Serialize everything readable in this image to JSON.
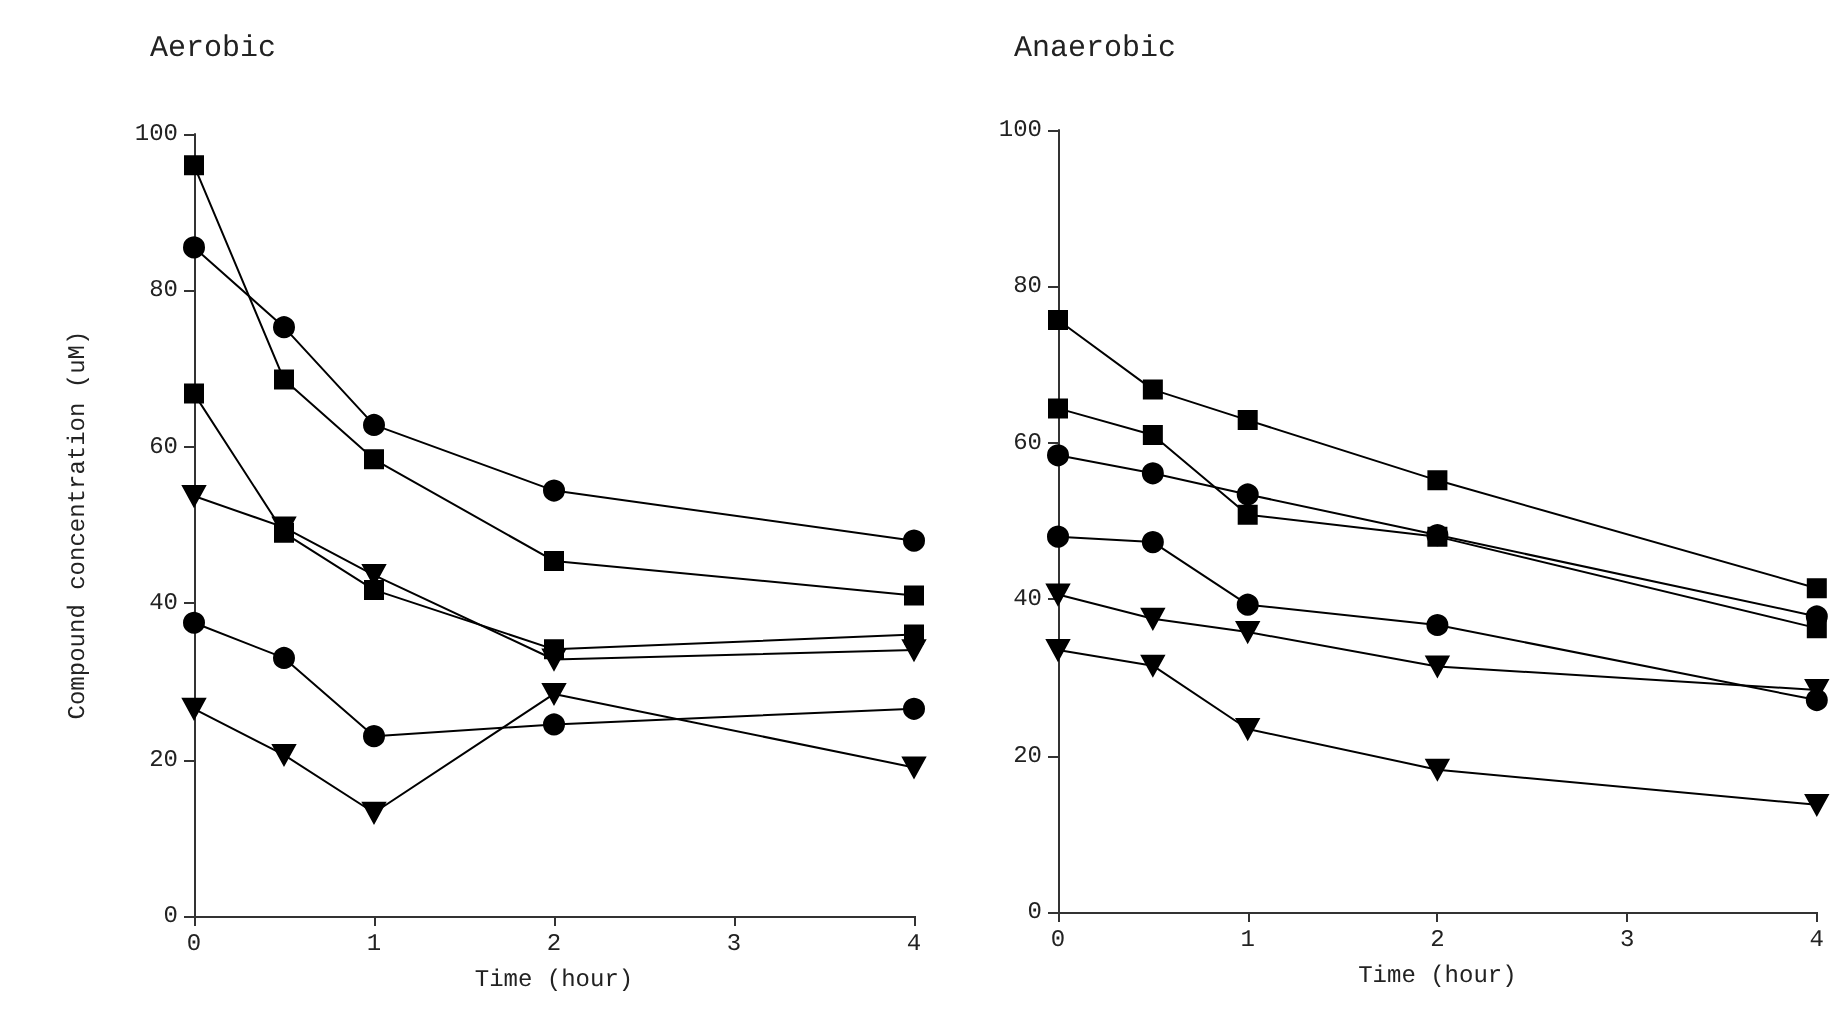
{
  "chart_data": [
    {
      "type": "line",
      "title": "Aerobic",
      "xlabel": "Time (hour)",
      "ylabel": "Compound concentration (uM)",
      "x": [
        0,
        0.5,
        1,
        2,
        4
      ],
      "xlim": [
        0,
        4
      ],
      "xticks": [
        0,
        1,
        2,
        3,
        4
      ],
      "ylim": [
        0,
        100
      ],
      "yticks": [
        0,
        20,
        40,
        60,
        80,
        100
      ],
      "line_style": "solid",
      "series": [
        {
          "color": "#000000",
          "marker": "square",
          "values": [
            96,
            68.6,
            58.4,
            45.4,
            41
          ]
        },
        {
          "color": "#000000",
          "marker": "circle",
          "values": [
            85.5,
            75.3,
            62.8,
            54.4,
            48
          ]
        },
        {
          "color": "#000000",
          "marker": "square",
          "values": [
            66.8,
            49,
            41.7,
            34.1,
            36
          ]
        },
        {
          "color": "#000000",
          "marker": "triangle",
          "values": [
            53.7,
            49.7,
            43.6,
            32.8,
            34
          ]
        },
        {
          "color": "#000000",
          "marker": "circle",
          "values": [
            37.5,
            33,
            23,
            24.5,
            26.5
          ]
        },
        {
          "color": "#000000",
          "marker": "triangle",
          "values": [
            26.5,
            20.6,
            13.2,
            28.4,
            19
          ]
        }
      ]
    },
    {
      "type": "line",
      "title": "Anaerobic",
      "xlabel": "Time (hour)",
      "x": [
        0,
        0.5,
        1,
        2,
        4
      ],
      "xlim": [
        0,
        4
      ],
      "xticks": [
        0,
        1,
        2,
        3,
        4
      ],
      "ylim": [
        0,
        100
      ],
      "yticks": [
        0,
        20,
        40,
        60,
        80,
        100
      ],
      "line_style": "solid",
      "series": [
        {
          "color": "#000000",
          "marker": "square",
          "values": [
            75.7,
            66.8,
            62.9,
            55.2,
            41.4
          ]
        },
        {
          "color": "#000000",
          "marker": "square",
          "values": [
            64.4,
            61,
            50.8,
            48,
            36.3
          ]
        },
        {
          "color": "#000000",
          "marker": "circle",
          "values": [
            58.4,
            56.1,
            53.4,
            48.2,
            37.8
          ]
        },
        {
          "color": "#000000",
          "marker": "circle",
          "values": [
            48,
            47.3,
            39.3,
            36.7,
            27.1
          ]
        },
        {
          "color": "#000000",
          "marker": "triangle",
          "values": [
            40.6,
            37.5,
            35.8,
            31.4,
            28.4
          ]
        },
        {
          "color": "#000000",
          "marker": "triangle",
          "values": [
            33.5,
            31.5,
            23.4,
            18.2,
            13.7
          ]
        }
      ]
    }
  ]
}
